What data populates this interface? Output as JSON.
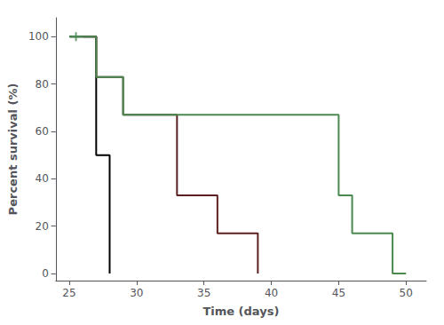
{
  "chart_data": {
    "type": "line",
    "xlabel": "Time (days)",
    "ylabel": "Percent survival (%)",
    "xlim": [
      24.0,
      51.5
    ],
    "ylim": [
      -3,
      108
    ],
    "xticks": [
      25,
      30,
      35,
      40,
      45,
      50
    ],
    "yticks": [
      0,
      20,
      40,
      60,
      80,
      100
    ],
    "grid": false,
    "series": [
      {
        "color": "#000000",
        "x": [
          25,
          27,
          27,
          28,
          28
        ],
        "values": [
          100,
          100,
          50,
          50,
          0
        ]
      },
      {
        "color": "#5C2020",
        "x": [
          26,
          27,
          27,
          29,
          29,
          33,
          33,
          36,
          36,
          39,
          39
        ],
        "values": [
          100,
          100,
          83,
          83,
          67,
          67,
          33,
          33,
          17,
          17,
          0
        ]
      },
      {
        "color": "#4A8A50",
        "x": [
          25,
          27,
          27,
          29,
          29,
          45,
          45,
          46,
          46,
          49,
          49,
          50
        ],
        "values": [
          100,
          100,
          83,
          83,
          67,
          67,
          33,
          33,
          17,
          17,
          0,
          0
        ]
      },
      {
        "type": "scatter",
        "marker": "+",
        "color": "#4A8A50",
        "x": [
          25.5
        ],
        "values": [
          100
        ]
      }
    ]
  }
}
